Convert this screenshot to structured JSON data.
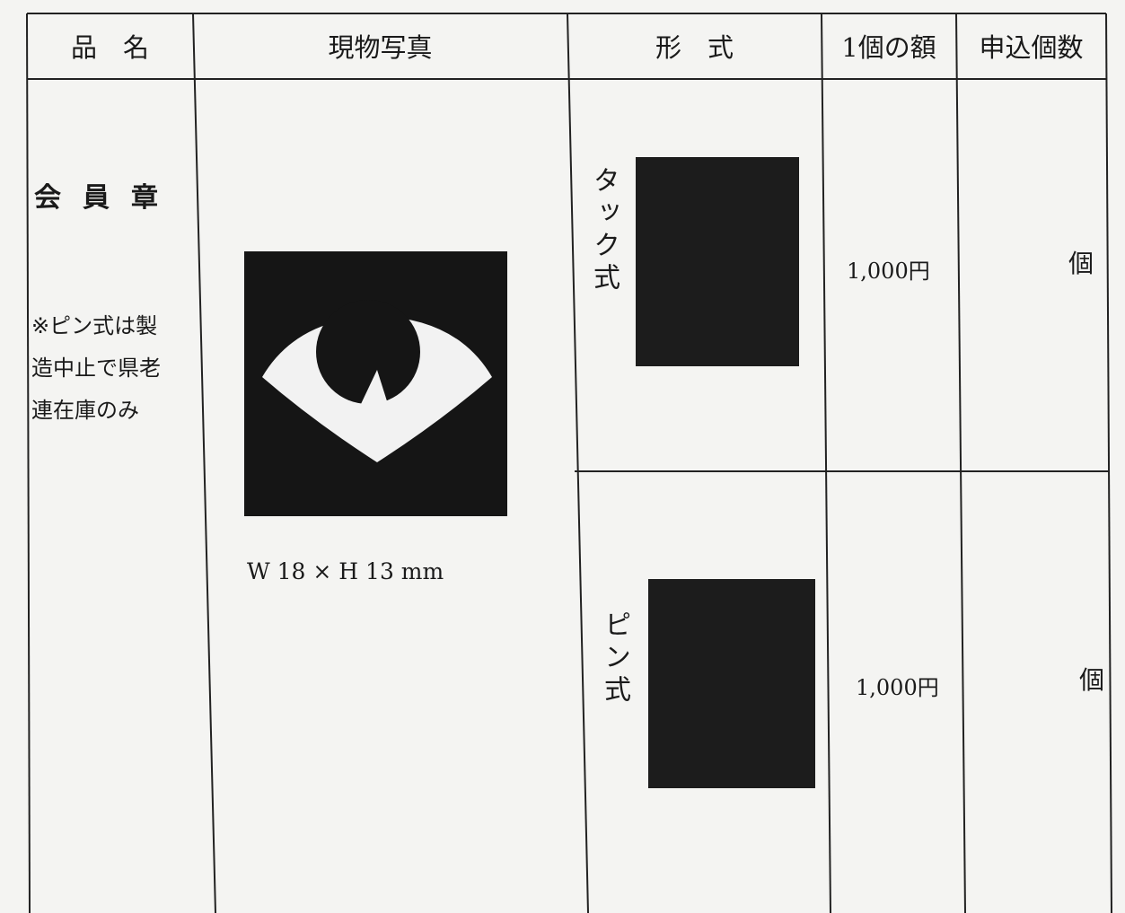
{
  "table": {
    "header": [
      "品　名",
      "現物写真",
      "形　式",
      "1個の額",
      "申込個数"
    ],
    "item": {
      "name": "会員章",
      "note_lines": [
        "※ピン式は製",
        "造中止で県老",
        "連在庫のみ"
      ]
    },
    "photo_caption": "W 18 × H 13 mm",
    "types": [
      {
        "name": "タック式",
        "price": "1,000円",
        "unit": "個"
      },
      {
        "name": "ピン式",
        "price": "1,000円",
        "unit": "個"
      }
    ]
  }
}
